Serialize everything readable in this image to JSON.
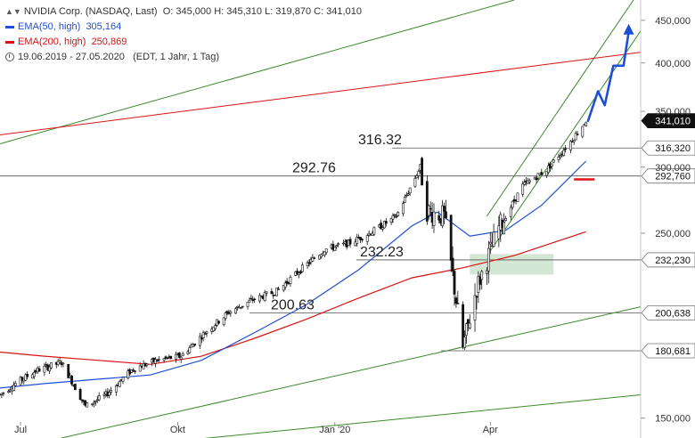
{
  "legend": {
    "instrument": "NVIDIA Corp. (NASDAQ, Last)",
    "ohlc": "O: 345,000  H: 345,310  L: 319,870  C: 341,010",
    "ema50_label": "EMA(50, high)",
    "ema50_value": "305,164",
    "ema200_label": "EMA(200, high)",
    "ema200_value": "250,869",
    "period": "19.06.2019 - 27.05.2020",
    "period_info": "(EDT, 1 Jahr, 1 Tag)"
  },
  "chart_data": {
    "type": "candlestick",
    "y_axis_ticks": [
      {
        "value": 450,
        "label": "450,000"
      },
      {
        "value": 400,
        "label": "400,000"
      },
      {
        "value": 350,
        "label": "350,000"
      },
      {
        "value": 300,
        "label": "300,000"
      },
      {
        "value": 250,
        "label": "250,000"
      },
      {
        "value": 150,
        "label": "150,000"
      }
    ],
    "x_axis_ticks": [
      {
        "date": "2019-07-01",
        "label": "Jul"
      },
      {
        "date": "2019-10-01",
        "label": "Okt"
      },
      {
        "date": "2020-01-01",
        "label": "Jan '20"
      },
      {
        "date": "2020-04-01",
        "label": "Apr"
      }
    ],
    "x_range": [
      "2019-06-19",
      "2020-06-28"
    ],
    "y_range": [
      142,
      476
    ],
    "log_scale": true,
    "grid": false,
    "colors": {
      "ema50": "#1f4fd6",
      "ema200": "#dd1111",
      "channel": "#3a8a2a",
      "projection": "#1f4fd6",
      "support_zone": "#cfe3cf"
    },
    "price_markers": [
      {
        "value": 341.01,
        "label": "341,010",
        "style": "current"
      },
      {
        "value": 316.32,
        "label": "316,320",
        "style": "level"
      },
      {
        "value": 292.76,
        "label": "292,760",
        "style": "level"
      },
      {
        "value": 232.23,
        "label": "232,230",
        "style": "level"
      },
      {
        "value": 200.638,
        "label": "200,638",
        "style": "level"
      },
      {
        "value": 180.681,
        "label": "180,681",
        "style": "level"
      }
    ],
    "annotations": [
      {
        "text": "316.32",
        "value": 316.32
      },
      {
        "text": "292.76",
        "value": 292.76
      },
      {
        "text": "232.23",
        "value": 232.23
      },
      {
        "text": "200.63",
        "value": 200.63
      }
    ],
    "ohlc_summary": {
      "open": 345.0,
      "high": 345.31,
      "low": 319.87,
      "close": 341.01
    },
    "close_path": [
      [
        "2019-06-19",
        160
      ],
      [
        "2019-06-28",
        165
      ],
      [
        "2019-07-10",
        171
      ],
      [
        "2019-07-25",
        175
      ],
      [
        "2019-08-08",
        155
      ],
      [
        "2019-08-20",
        160
      ],
      [
        "2019-09-05",
        172
      ],
      [
        "2019-09-19",
        176
      ],
      [
        "2019-10-03",
        178
      ],
      [
        "2019-10-17",
        190
      ],
      [
        "2019-10-31",
        201
      ],
      [
        "2019-11-14",
        208
      ],
      [
        "2019-11-28",
        213
      ],
      [
        "2019-12-12",
        226
      ],
      [
        "2019-12-26",
        239
      ],
      [
        "2020-01-09",
        243
      ],
      [
        "2020-01-23",
        251
      ],
      [
        "2020-02-06",
        262
      ],
      [
        "2020-02-20",
        300
      ],
      [
        "2020-02-24",
        266
      ],
      [
        "2020-03-05",
        262
      ],
      [
        "2020-03-16",
        182
      ],
      [
        "2020-03-24",
        215
      ],
      [
        "2020-04-06",
        254
      ],
      [
        "2020-04-20",
        285
      ],
      [
        "2020-05-04",
        298
      ],
      [
        "2020-05-18",
        322
      ],
      [
        "2020-05-27",
        341
      ]
    ],
    "ema50_path": [
      [
        "2019-06-19",
        163
      ],
      [
        "2019-07-15",
        165
      ],
      [
        "2019-08-15",
        167
      ],
      [
        "2019-09-15",
        169
      ],
      [
        "2019-10-15",
        176
      ],
      [
        "2019-11-15",
        190
      ],
      [
        "2019-12-15",
        205
      ],
      [
        "2020-01-15",
        226
      ],
      [
        "2020-02-15",
        255
      ],
      [
        "2020-03-01",
        265
      ],
      [
        "2020-03-20",
        248
      ],
      [
        "2020-04-10",
        252
      ],
      [
        "2020-05-01",
        270
      ],
      [
        "2020-05-27",
        305
      ]
    ],
    "ema200_path": [
      [
        "2019-06-19",
        180
      ],
      [
        "2019-07-15",
        178
      ],
      [
        "2019-08-15",
        176
      ],
      [
        "2019-09-15",
        174
      ],
      [
        "2019-10-15",
        178
      ],
      [
        "2019-11-15",
        187
      ],
      [
        "2019-12-15",
        197
      ],
      [
        "2020-01-15",
        209
      ],
      [
        "2020-02-15",
        221
      ],
      [
        "2020-03-15",
        227
      ],
      [
        "2020-04-15",
        235
      ],
      [
        "2020-05-27",
        251
      ]
    ],
    "trendlines": [
      {
        "color": "#3a8a2a",
        "points": [
          [
            "2019-06-19",
            320
          ],
          [
            "2020-04-15",
            476
          ]
        ]
      },
      {
        "color": "#3a8a2a",
        "points": [
          [
            "2019-07-25",
            142
          ],
          [
            "2020-06-28",
            204
          ]
        ]
      },
      {
        "color": "#3a8a2a",
        "points": [
          [
            "2019-09-19",
            140
          ],
          [
            "2020-06-28",
            160
          ]
        ]
      },
      {
        "color": "#3a8a2a",
        "points": [
          [
            "2020-03-30",
            262
          ],
          [
            "2020-06-25",
            480
          ]
        ]
      },
      {
        "color": "#3a8a2a",
        "points": [
          [
            "2020-04-01",
            238
          ],
          [
            "2020-06-28",
            437
          ]
        ]
      },
      {
        "color": "#dd1111",
        "points": [
          [
            "2019-06-19",
            328
          ],
          [
            "2020-06-28",
            412
          ]
        ]
      }
    ],
    "support_zone": {
      "from": "2020-03-20",
      "to": "2020-05-08",
      "low": 223,
      "high": 236
    },
    "mini_marker": {
      "from": "2020-05-20",
      "to": "2020-06-01",
      "value": 290
    },
    "projection_arrow": [
      [
        "2020-05-28",
        340
      ],
      [
        "2020-06-03",
        370
      ],
      [
        "2020-06-07",
        356
      ],
      [
        "2020-06-12",
        397
      ],
      [
        "2020-06-18",
        397
      ],
      [
        "2020-06-21",
        436
      ]
    ]
  }
}
